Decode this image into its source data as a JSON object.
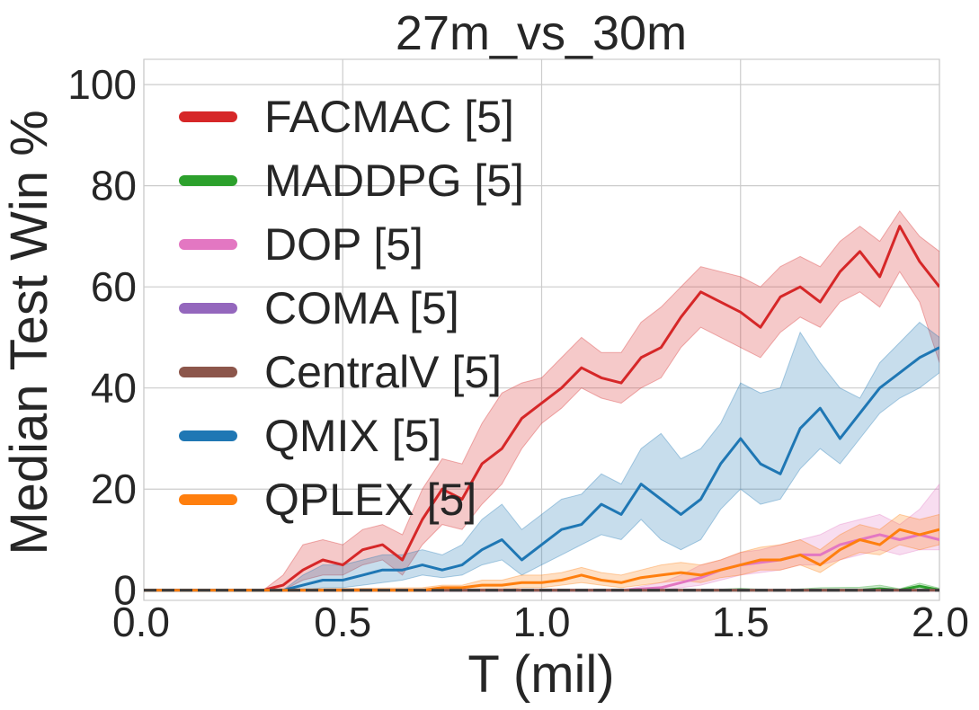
{
  "chart_data": {
    "type": "line",
    "title": "27m_vs_30m",
    "xlabel": "T (mil)",
    "ylabel": "Median Test Win %",
    "xlim": [
      0,
      2.0
    ],
    "ylim": [
      -2,
      105
    ],
    "xticks": [
      0.0,
      0.5,
      1.0,
      1.5,
      2.0
    ],
    "xtick_labels": [
      "0.0",
      "0.5",
      "1.0",
      "1.5",
      "2.0"
    ],
    "yticks": [
      0,
      20,
      40,
      60,
      80,
      100
    ],
    "ytick_labels": [
      "0",
      "20",
      "40",
      "60",
      "80",
      "100"
    ],
    "grid": true,
    "legend_position": "upper-left",
    "series": [
      {
        "name": "FACMAC [5]",
        "color": "#d62728",
        "x": [
          0.0,
          0.25,
          0.3,
          0.35,
          0.4,
          0.45,
          0.5,
          0.55,
          0.6,
          0.65,
          0.7,
          0.75,
          0.8,
          0.85,
          0.9,
          0.95,
          1.0,
          1.05,
          1.1,
          1.15,
          1.2,
          1.25,
          1.3,
          1.35,
          1.4,
          1.45,
          1.5,
          1.55,
          1.6,
          1.65,
          1.7,
          1.75,
          1.8,
          1.85,
          1.9,
          1.95,
          2.0
        ],
        "values": [
          0,
          0,
          0,
          1,
          4,
          6,
          5,
          8,
          9,
          6,
          14,
          20,
          18,
          25,
          28,
          34,
          37,
          40,
          44,
          42,
          41,
          46,
          48,
          54,
          59,
          57,
          55,
          52,
          58,
          60,
          57,
          63,
          67,
          62,
          72,
          65,
          60
        ],
        "lower": [
          0,
          0,
          0,
          0,
          2,
          3,
          3,
          5,
          6,
          3,
          9,
          13,
          12,
          17,
          21,
          28,
          33,
          36,
          40,
          38,
          37,
          40,
          42,
          48,
          52,
          50,
          48,
          46,
          51,
          54,
          52,
          57,
          59,
          56,
          63,
          57,
          45
        ],
        "upper": [
          0,
          0,
          0,
          3,
          9,
          10,
          9,
          12,
          13,
          11,
          20,
          26,
          25,
          33,
          39,
          41,
          42,
          46,
          50,
          47,
          47,
          53,
          56,
          60,
          64,
          63,
          62,
          60,
          64,
          66,
          64,
          69,
          72,
          69,
          75,
          70,
          67
        ]
      },
      {
        "name": "MADDPG [5]",
        "color": "#2ca02c",
        "x": [
          0.0,
          1.4,
          1.5,
          1.6,
          1.7,
          1.8,
          1.85,
          1.9,
          1.95,
          2.0
        ],
        "values": [
          0,
          0,
          0,
          0,
          0,
          0,
          0.3,
          0,
          0.8,
          0
        ],
        "lower": [
          0,
          0,
          0,
          0,
          0,
          0,
          0,
          0,
          0,
          0
        ],
        "upper": [
          0,
          0,
          0.4,
          0,
          0.5,
          0.6,
          1.0,
          0.3,
          1.4,
          0.4
        ]
      },
      {
        "name": "DOP [5]",
        "color": "#e377c2",
        "x": [
          0.0,
          1.2,
          1.3,
          1.35,
          1.4,
          1.45,
          1.5,
          1.55,
          1.6,
          1.65,
          1.7,
          1.75,
          1.8,
          1.85,
          1.9,
          1.95,
          2.0
        ],
        "values": [
          0,
          0,
          0.5,
          1.5,
          2.5,
          4,
          5,
          5.5,
          6,
          7,
          7,
          9,
          10,
          11,
          10,
          11,
          10
        ],
        "lower": [
          0,
          0,
          0,
          0.5,
          1,
          2,
          3,
          3.5,
          4,
          5,
          5,
          6,
          7,
          8,
          7,
          8,
          8
        ],
        "upper": [
          0,
          0,
          1.5,
          3,
          5,
          6,
          7.5,
          8,
          9,
          10,
          11,
          13,
          14,
          15,
          13,
          16,
          21
        ]
      },
      {
        "name": "COMA [5]",
        "color": "#9467bd",
        "x": [
          0.0,
          2.0
        ],
        "values": [
          0,
          0
        ],
        "lower": [
          0,
          0
        ],
        "upper": [
          0,
          0
        ]
      },
      {
        "name": "CentralV [5]",
        "color": "#8c564b",
        "x": [
          0.0,
          2.0
        ],
        "values": [
          0,
          0
        ],
        "lower": [
          0,
          0
        ],
        "upper": [
          0,
          0
        ]
      },
      {
        "name": "QMIX [5]",
        "color": "#1f77b4",
        "x": [
          0.0,
          0.35,
          0.4,
          0.45,
          0.5,
          0.55,
          0.6,
          0.65,
          0.7,
          0.75,
          0.8,
          0.85,
          0.9,
          0.95,
          1.0,
          1.05,
          1.1,
          1.15,
          1.2,
          1.25,
          1.3,
          1.35,
          1.4,
          1.45,
          1.5,
          1.55,
          1.6,
          1.65,
          1.7,
          1.75,
          1.8,
          1.85,
          1.9,
          1.95,
          2.0
        ],
        "values": [
          0,
          0,
          1,
          2,
          2,
          3,
          4,
          4,
          5,
          4,
          5,
          8,
          10,
          6,
          9,
          12,
          13,
          17,
          15,
          21,
          18,
          15,
          18,
          25,
          30,
          25,
          23,
          32,
          36,
          30,
          35,
          40,
          43,
          46,
          48
        ],
        "lower": [
          0,
          0,
          0,
          0.5,
          0.5,
          1,
          1.5,
          2,
          3,
          2.5,
          3,
          5,
          6,
          3,
          5,
          7,
          9,
          11,
          10,
          14,
          10,
          8,
          10,
          16,
          20,
          17,
          18,
          24,
          28,
          25,
          30,
          35,
          38,
          40,
          43
        ],
        "upper": [
          0,
          0,
          3,
          5,
          5,
          6,
          7,
          7,
          8,
          7,
          9,
          14,
          17,
          12,
          15,
          18,
          19,
          23,
          21,
          28,
          31,
          26,
          28,
          33,
          41,
          39,
          40,
          51,
          45,
          40,
          38,
          45,
          49,
          53,
          50
        ]
      },
      {
        "name": "QPLEX [5]",
        "color": "#ff7f0e",
        "x": [
          0.0,
          0.7,
          0.75,
          0.8,
          0.85,
          0.9,
          0.95,
          1.0,
          1.05,
          1.1,
          1.15,
          1.2,
          1.25,
          1.3,
          1.35,
          1.4,
          1.45,
          1.5,
          1.55,
          1.6,
          1.65,
          1.7,
          1.75,
          1.8,
          1.85,
          1.9,
          1.95,
          2.0
        ],
        "values": [
          0,
          0,
          0.5,
          0.5,
          1,
          1,
          1.5,
          1.5,
          2,
          3,
          2,
          1.5,
          2.5,
          3,
          3.5,
          3,
          4,
          5,
          6,
          6,
          7,
          5,
          8,
          10,
          9,
          12,
          11,
          12
        ],
        "lower": [
          0,
          0,
          0,
          0,
          0,
          0,
          0.5,
          0.5,
          1,
          1.5,
          1,
          0.5,
          1,
          1.5,
          2,
          1.5,
          2.5,
          3,
          4,
          4,
          5,
          3.5,
          6,
          7.5,
          7,
          9,
          8,
          9
        ],
        "upper": [
          0,
          0.5,
          1,
          1,
          2,
          2,
          3,
          3,
          3.5,
          4.5,
          3.5,
          3,
          4,
          5,
          5.5,
          5,
          6,
          7.5,
          8.5,
          9,
          10,
          8,
          11,
          13,
          12,
          15,
          14,
          15
        ]
      }
    ]
  }
}
